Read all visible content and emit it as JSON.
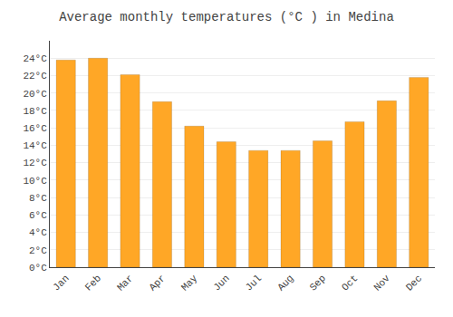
{
  "chart_data": {
    "type": "bar",
    "title": "Average monthly temperatures (°C ) in Medina",
    "categories": [
      "Jan",
      "Feb",
      "Mar",
      "Apr",
      "May",
      "Jun",
      "Jul",
      "Aug",
      "Sep",
      "Oct",
      "Nov",
      "Dec"
    ],
    "values": [
      23.8,
      24.0,
      22.1,
      19.0,
      16.2,
      14.4,
      13.4,
      13.4,
      14.5,
      16.7,
      19.1,
      21.8
    ],
    "color": "#FFA726",
    "ylim": [
      0,
      26
    ],
    "yticks": [
      {
        "value": 0,
        "label": "0°C"
      },
      {
        "value": 2,
        "label": "2°C"
      },
      {
        "value": 4,
        "label": "4°C"
      },
      {
        "value": 6,
        "label": "6°C"
      },
      {
        "value": 8,
        "label": "8°C"
      },
      {
        "value": 10,
        "label": "10°C"
      },
      {
        "value": 12,
        "label": "12°C"
      },
      {
        "value": 14,
        "label": "14°C"
      },
      {
        "value": 16,
        "label": "16°C"
      },
      {
        "value": 18,
        "label": "18°C"
      },
      {
        "value": 20,
        "label": "20°C"
      },
      {
        "value": 22,
        "label": "22°C"
      },
      {
        "value": 24,
        "label": "24°C"
      }
    ],
    "grid": true
  }
}
